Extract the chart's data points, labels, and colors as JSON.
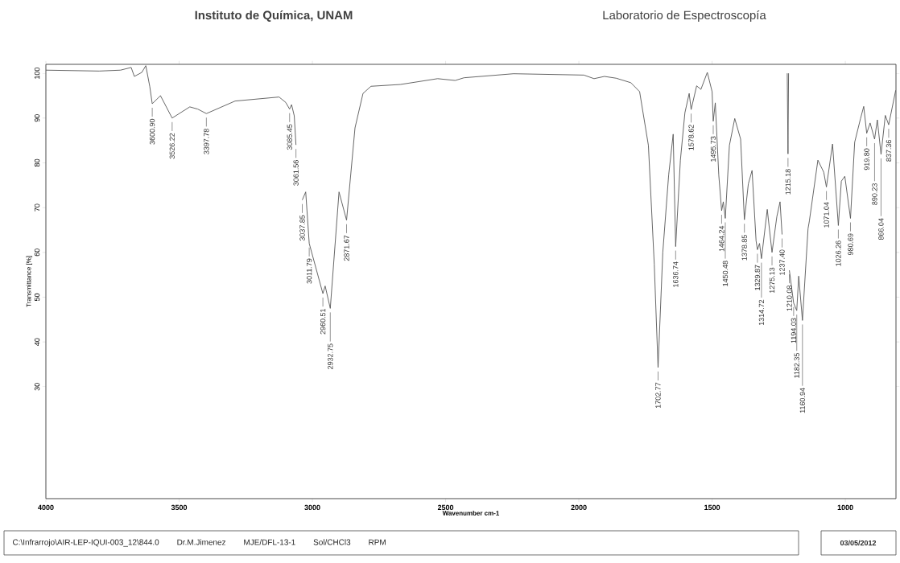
{
  "chart_data": {
    "type": "line",
    "title": "Instituto de Química, UNAM",
    "subtitle": "Laboratorio de Espectroscopía",
    "xlabel": "Wavenumber cm-1",
    "ylabel": "Transmittance [%]",
    "xlim": [
      4000,
      810
    ],
    "ylim": [
      5,
      102
    ],
    "xticks": [
      4000,
      3500,
      3000,
      2500,
      2000,
      1500,
      1000
    ],
    "yticks": [
      30,
      40,
      50,
      60,
      70,
      80,
      90,
      100
    ],
    "color": "#555555",
    "x": [
      4000,
      3800,
      3720,
      3680,
      3668,
      3640,
      3625,
      3610,
      3600.9,
      3570,
      3526.22,
      3460,
      3430,
      3397.78,
      3290,
      3125,
      3100,
      3085.45,
      3078,
      3068,
      3061.56,
      3052,
      3045,
      3037.85,
      3025,
      3011.79,
      2960.51,
      2952,
      2932.75,
      2900,
      2871.67,
      2840,
      2810,
      2780,
      2670,
      2530,
      2464,
      2431,
      2245,
      1981,
      1943,
      1904,
      1860,
      1805,
      1772,
      1739,
      1717,
      1702.77,
      1685,
      1663,
      1646,
      1636.74,
      1619,
      1602,
      1586,
      1578.62,
      1558,
      1542,
      1518,
      1500,
      1495.73,
      1488,
      1475,
      1464.24,
      1458,
      1450.48,
      1435,
      1415,
      1393,
      1378.85,
      1364,
      1350,
      1335,
      1329.87,
      1322,
      1314.72,
      1293,
      1275.13,
      1257,
      1245,
      1237.4,
      1222,
      1218,
      1215.18,
      1213,
      1212,
      1210.08,
      1194.03,
      1182.35,
      1175,
      1160.94,
      1140,
      1135,
      1103,
      1081,
      1071.04,
      1048,
      1026.26,
      1015,
      1002,
      980.69,
      965,
      943,
      931,
      919.8,
      907,
      890.23,
      880,
      866.04,
      850,
      837.36,
      811
    ],
    "values": [
      100.7,
      100.5,
      100.7,
      101.3,
      99.3,
      100.2,
      101.7,
      97,
      93.2,
      95,
      90.0,
      92.5,
      92,
      91.0,
      93.8,
      94.7,
      93.5,
      92,
      93,
      90.5,
      84,
      null,
      null,
      71.7,
      73.5,
      62,
      50.8,
      52.5,
      47.5,
      73.5,
      67.2,
      87.8,
      95.5,
      97.1,
      97.5,
      98.8,
      98.4,
      99,
      99.9,
      99.6,
      98.8,
      99.3,
      98.9,
      97.9,
      95.9,
      83.9,
      57.4,
      34.3,
      60,
      77.3,
      86.4,
      61.3,
      80.6,
      91.2,
      95.5,
      91.9,
      97.2,
      96.4,
      100.2,
      95.9,
      89.3,
      93.4,
      77.3,
      69.3,
      71.3,
      67.6,
      83.9,
      89.9,
      85.3,
      67.3,
      75.3,
      78.3,
      62.6,
      60.6,
      62,
      58.6,
      69.6,
      60,
      68,
      71.3,
      64,
      null,
      100,
      82,
      100,
      null,
      56,
      48.7,
      47,
      54.7,
      44.8,
      65.3,
      67,
      80.6,
      77.9,
      74.6,
      84.2,
      66,
      75.9,
      77,
      67.6,
      84.6,
      89.9,
      92.6,
      86.6,
      88.9,
      85.3,
      89.6,
      81.9,
      90.6,
      88.5,
      96.2
    ],
    "annotations": [
      {
        "text": "3600.90",
        "x": 3600.9,
        "y": 93.2
      },
      {
        "text": "3526.22",
        "x": 3526.22,
        "y": 90.0
      },
      {
        "text": "3397.78",
        "x": 3397.78,
        "y": 91.0
      },
      {
        "text": "3085.45",
        "x": 3085.45,
        "y": 92
      },
      {
        "text": "3061.56",
        "x": 3061.56,
        "y": 84
      },
      {
        "text": "3037.85",
        "x": 3037.85,
        "y": 71.7
      },
      {
        "text": "3011.79",
        "x": 3011.79,
        "y": 62
      },
      {
        "text": "2960.51",
        "x": 2960.51,
        "y": 50.8
      },
      {
        "text": "2932.75",
        "x": 2932.75,
        "y": 47.5
      },
      {
        "text": "2871.67",
        "x": 2871.67,
        "y": 67.2
      },
      {
        "text": "1702.77",
        "x": 1702.77,
        "y": 34.3
      },
      {
        "text": "1636.74",
        "x": 1636.74,
        "y": 61.3
      },
      {
        "text": "1578.62",
        "x": 1578.62,
        "y": 91.9
      },
      {
        "text": "1495.73",
        "x": 1495.73,
        "y": 89.3
      },
      {
        "text": "1464.24",
        "x": 1464.24,
        "y": 69.3
      },
      {
        "text": "1450.48",
        "x": 1450.48,
        "y": 67.6
      },
      {
        "text": "1378.85",
        "x": 1378.85,
        "y": 67.3
      },
      {
        "text": "1329.87",
        "x": 1329.87,
        "y": 60.6
      },
      {
        "text": "1314.72",
        "x": 1314.72,
        "y": 58.6
      },
      {
        "text": "1275.13",
        "x": 1275.13,
        "y": 60
      },
      {
        "text": "1237.40",
        "x": 1237.4,
        "y": 64
      },
      {
        "text": "1215.18",
        "x": 1215.18,
        "y": 82
      },
      {
        "text": "1210.08",
        "x": 1210.08,
        "y": 56
      },
      {
        "text": "1194.03",
        "x": 1194.03,
        "y": 48.7
      },
      {
        "text": "1182.35",
        "x": 1182.35,
        "y": 47
      },
      {
        "text": "1160.94",
        "x": 1160.94,
        "y": 44.8
      },
      {
        "text": "1071.04",
        "x": 1071.04,
        "y": 74.6
      },
      {
        "text": "1026.26",
        "x": 1026.26,
        "y": 66
      },
      {
        "text": "980.69",
        "x": 980.69,
        "y": 67.6
      },
      {
        "text": "919.80",
        "x": 919.8,
        "y": 86.6
      },
      {
        "text": "890.23",
        "x": 890.23,
        "y": 85.3
      },
      {
        "text": "866.04",
        "x": 866.04,
        "y": 81.9
      },
      {
        "text": "837.36",
        "x": 837.36,
        "y": 88.5
      },
      "C:\\Infrarrojo\\AIR-LEP-IQUI-003_12\\844.0",
      "Dr.M.Jimenez",
      "MJE/DFL-13-1",
      "Sol/CHCl3",
      "RPM",
      "03/05/2012"
    ]
  }
}
